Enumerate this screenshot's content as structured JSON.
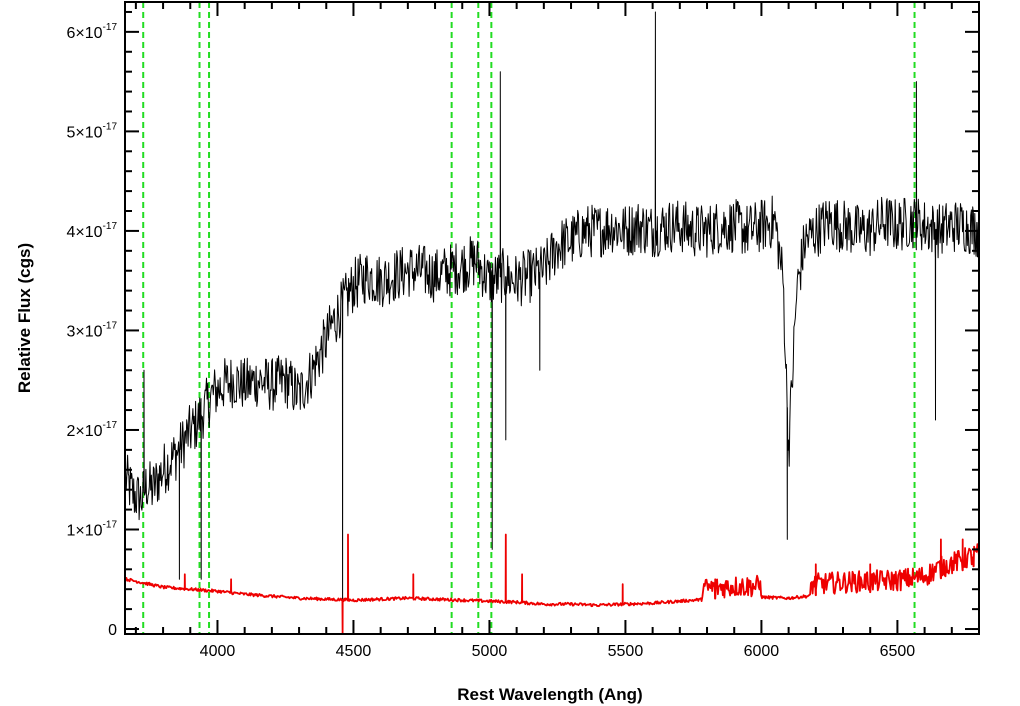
{
  "chart_data": {
    "type": "line",
    "title": "",
    "xlabel": "Rest Wavelength (Ang)",
    "ylabel": "Relative Flux (cgs)",
    "xlim": [
      3660,
      6800
    ],
    "ylim": [
      -0.05,
      6.3
    ],
    "y_unit_exponent": -17,
    "grid": false,
    "legend": "none",
    "x_ticks": [
      4000,
      4500,
      5000,
      5500,
      6000,
      6500
    ],
    "y_ticks": [
      {
        "value": 0,
        "label": "0"
      },
      {
        "value": 1,
        "label": "1×10",
        "exp": "-17"
      },
      {
        "value": 2,
        "label": "2×10",
        "exp": "-17"
      },
      {
        "value": 3,
        "label": "3×10",
        "exp": "-17"
      },
      {
        "value": 4,
        "label": "4×10",
        "exp": "-17"
      },
      {
        "value": 5,
        "label": "5×10",
        "exp": "-17"
      },
      {
        "value": 6,
        "label": "6×10",
        "exp": "-17"
      }
    ],
    "reference_lines": [
      3727,
      3934,
      3969,
      4861,
      4959,
      5007,
      6563
    ],
    "series": [
      {
        "color": "#000000",
        "x": [
          3665,
          3690,
          3720,
          3740,
          3760,
          3800,
          3830,
          3860,
          3890,
          3920,
          3950,
          3980,
          4020,
          4060,
          4100,
          4150,
          4200,
          4250,
          4300,
          4350,
          4400,
          4420,
          4460,
          4500,
          4550,
          4600,
          4650,
          4700,
          4750,
          4800,
          4850,
          4900,
          4950,
          5000,
          5050,
          5100,
          5150,
          5200,
          5250,
          5300,
          5350,
          5400,
          5450,
          5500,
          5550,
          5600,
          5650,
          5700,
          5750,
          5800,
          5850,
          5900,
          5950,
          6000,
          6050,
          6080,
          6100,
          6130,
          6160,
          6200,
          6250,
          6300,
          6350,
          6400,
          6450,
          6500,
          6550,
          6600,
          6650,
          6700,
          6750,
          6800
        ],
        "values": [
          1.5,
          1.35,
          1.3,
          1.45,
          1.4,
          1.6,
          1.7,
          1.8,
          1.95,
          2.05,
          2.2,
          2.35,
          2.45,
          2.5,
          2.45,
          2.5,
          2.45,
          2.5,
          2.35,
          2.6,
          2.9,
          3.05,
          3.25,
          3.45,
          3.55,
          3.5,
          3.55,
          3.6,
          3.6,
          3.55,
          3.6,
          3.65,
          3.7,
          3.5,
          3.55,
          3.5,
          3.55,
          3.6,
          3.85,
          3.9,
          4.0,
          4.0,
          4.05,
          4.0,
          4.05,
          4.0,
          4.05,
          4.05,
          4.0,
          4.0,
          4.05,
          4.05,
          4.0,
          4.05,
          4.1,
          3.5,
          1.8,
          3.4,
          3.9,
          4.0,
          4.1,
          4.05,
          4.0,
          4.0,
          4.1,
          4.05,
          4.1,
          4.05,
          4.0,
          4.05,
          4.05,
          4.0
        ],
        "spikes": [
          [
            3730,
            2.6
          ],
          [
            3860,
            0.5
          ],
          [
            3940,
            0.5
          ],
          [
            4460,
            0.0
          ],
          [
            5010,
            0.8
          ],
          [
            5040,
            5.6
          ],
          [
            5060,
            1.9
          ],
          [
            5185,
            2.6
          ],
          [
            5610,
            6.2
          ],
          [
            6095,
            0.9
          ],
          [
            6570,
            5.5
          ],
          [
            6640,
            2.1
          ]
        ]
      },
      {
        "color": "#ee0000",
        "x": [
          3665,
          3700,
          3800,
          3900,
          4000,
          4100,
          4200,
          4300,
          4400,
          4500,
          4600,
          4700,
          4800,
          4900,
          5000,
          5100,
          5200,
          5300,
          5400,
          5500,
          5600,
          5700,
          5800,
          5900,
          6000,
          6100,
          6200,
          6300,
          6400,
          6500,
          6600,
          6650,
          6700,
          6750,
          6800
        ],
        "values": [
          0.5,
          0.48,
          0.42,
          0.4,
          0.38,
          0.35,
          0.33,
          0.31,
          0.3,
          0.29,
          0.3,
          0.31,
          0.3,
          0.29,
          0.28,
          0.27,
          0.25,
          0.25,
          0.24,
          0.25,
          0.26,
          0.28,
          0.3,
          0.32,
          0.32,
          0.31,
          0.34,
          0.36,
          0.37,
          0.38,
          0.42,
          0.5,
          0.55,
          0.6,
          0.65
        ],
        "spikes": [
          [
            3880,
            0.55
          ],
          [
            4050,
            0.5
          ],
          [
            4460,
            -0.05
          ],
          [
            4480,
            0.95
          ],
          [
            4720,
            0.55
          ],
          [
            5060,
            0.95
          ],
          [
            5120,
            0.55
          ],
          [
            5490,
            0.45
          ],
          [
            5830,
            0.5
          ],
          [
            6200,
            0.65
          ],
          [
            6400,
            0.65
          ],
          [
            6660,
            0.9
          ],
          [
            6740,
            0.9
          ],
          [
            6780,
            0.75
          ]
        ]
      }
    ]
  }
}
